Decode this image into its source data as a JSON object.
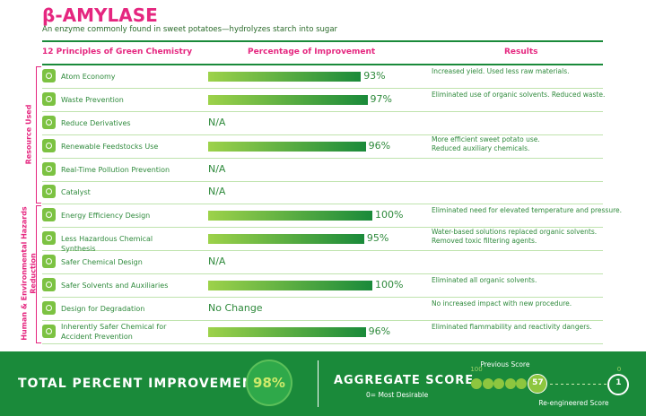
{
  "title": "β-AMYLASE",
  "subtitle": "An enzyme commonly found in sweet potatoes—hydrolyzes starch into sugar",
  "headers": {
    "principle": "12 Principles of Green Chemistry",
    "improvement": "Percentage of Improvement",
    "results": "Results"
  },
  "groups": [
    {
      "label": "Resource Used",
      "first_row": 0,
      "last_row": 5
    },
    {
      "label": "Human & Environmental Hazards Reduction",
      "first_row": 6,
      "last_row": 11
    }
  ],
  "bar_scale": [
    0,
    100
  ],
  "rows": [
    {
      "principle": "Atom Economy",
      "improvement": 93,
      "improvement_label": "93%",
      "result": [
        "Increased yield. Used less raw materials."
      ]
    },
    {
      "principle": "Waste Prevention",
      "improvement": 97,
      "improvement_label": "97%",
      "result": [
        "Eliminated use of organic solvents. Reduced waste."
      ]
    },
    {
      "principle": "Reduce Derivatives",
      "improvement": null,
      "improvement_label": "N/A"
    },
    {
      "principle": "Renewable Feedstocks Use",
      "improvement": 96,
      "improvement_label": "96%",
      "result": [
        "More efficient sweet potato use.",
        "Reduced auxiliary chemicals."
      ]
    },
    {
      "principle": "Real-Time Pollution Prevention",
      "improvement": null,
      "improvement_label": "N/A"
    },
    {
      "principle": "Catalyst",
      "improvement": null,
      "improvement_label": "N/A"
    },
    {
      "principle": "Energy Efficiency Design",
      "improvement": 100,
      "improvement_label": "100%",
      "result": [
        "Eliminated need for elevated temperature and pressure."
      ]
    },
    {
      "principle": "Less Hazardous Chemical Synthesis",
      "improvement": 95,
      "improvement_label": "95%",
      "result": [
        "Water-based solutions replaced organic solvents.",
        "Removed toxic filtering agents."
      ]
    },
    {
      "principle": "Safer Chemical Design",
      "improvement": null,
      "improvement_label": "N/A"
    },
    {
      "principle": "Safer Solvents and Auxiliaries",
      "improvement": 100,
      "improvement_label": "100%",
      "result": [
        "Eliminated all organic solvents."
      ]
    },
    {
      "principle": "Design for Degradation",
      "improvement": null,
      "improvement_label": "No Change",
      "result": [
        "No increased impact with new procedure."
      ]
    },
    {
      "principle": "Inherently Safer Chemical for Accident Prevention",
      "improvement": 96,
      "improvement_label": "96%",
      "result": [
        "Eliminated flammability and reactivity dangers."
      ]
    }
  ],
  "total": {
    "label": "TOTAL PERCENT IMPROVEMENT",
    "value": 98,
    "value_label": "98%"
  },
  "aggregate": {
    "label": "AGGREGATE SCORE",
    "note": "0= Most Desirable",
    "scale": [
      100,
      0
    ],
    "previous_label": "Previous Score",
    "previous": 57,
    "current_label": "Re-engineered Score",
    "current": 1
  }
}
